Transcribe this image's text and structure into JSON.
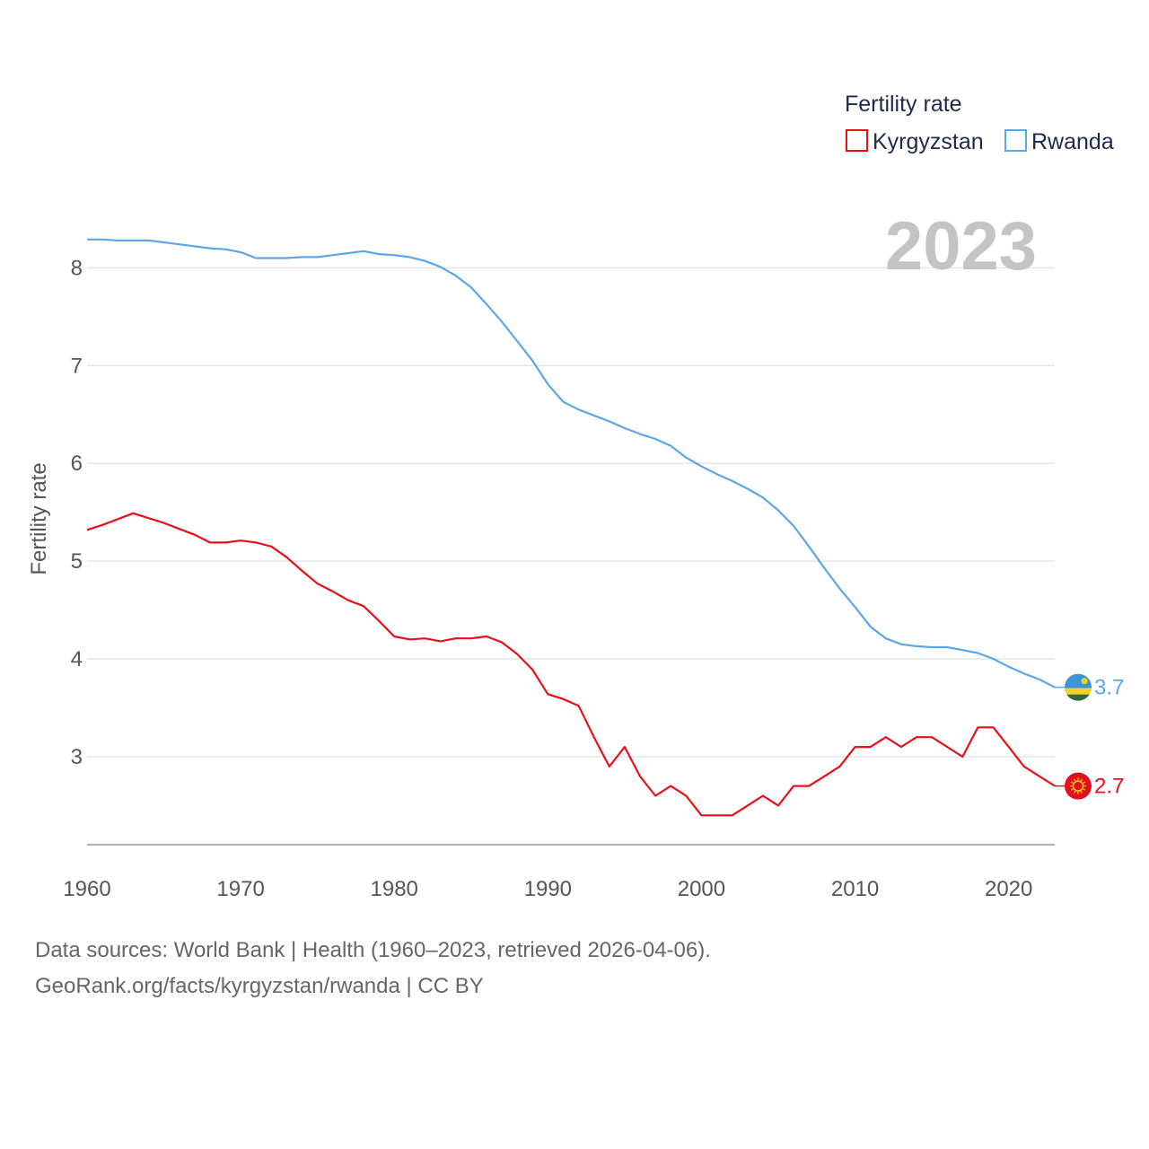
{
  "chart_data": {
    "type": "line",
    "title": "",
    "year_label": "2023",
    "xlabel": "",
    "ylabel": "Fertility rate",
    "xlim": [
      1960,
      2023
    ],
    "ylim": [
      2.1,
      8.6
    ],
    "xticks": [
      1960,
      1970,
      1980,
      1990,
      2000,
      2010,
      2020
    ],
    "yticks": [
      3,
      4,
      5,
      6,
      7,
      8
    ],
    "grid": true,
    "legend": {
      "title": "Fertility rate",
      "position": "top-right"
    },
    "x": [
      1960,
      1961,
      1962,
      1963,
      1964,
      1965,
      1966,
      1967,
      1968,
      1969,
      1970,
      1971,
      1972,
      1973,
      1974,
      1975,
      1976,
      1977,
      1978,
      1979,
      1980,
      1981,
      1982,
      1983,
      1984,
      1985,
      1986,
      1987,
      1988,
      1989,
      1990,
      1991,
      1992,
      1993,
      1994,
      1995,
      1996,
      1997,
      1998,
      1999,
      2000,
      2001,
      2002,
      2003,
      2004,
      2005,
      2006,
      2007,
      2008,
      2009,
      2010,
      2011,
      2012,
      2013,
      2014,
      2015,
      2016,
      2017,
      2018,
      2019,
      2020,
      2021,
      2022,
      2023
    ],
    "series": [
      {
        "name": "Kyrgyzstan",
        "color": "#e8101a",
        "end_label": "2.7",
        "flag": "kyrgyzstan-flag",
        "values": [
          5.32,
          5.37,
          5.43,
          5.49,
          5.44,
          5.39,
          5.33,
          5.27,
          5.19,
          5.19,
          5.21,
          5.19,
          5.15,
          5.04,
          4.9,
          4.77,
          4.69,
          4.6,
          4.54,
          4.39,
          4.23,
          4.2,
          4.21,
          4.18,
          4.21,
          4.21,
          4.23,
          4.17,
          4.05,
          3.89,
          3.64,
          3.59,
          3.52,
          3.2,
          2.9,
          3.1,
          2.8,
          2.6,
          2.7,
          2.6,
          2.4,
          2.4,
          2.4,
          2.5,
          2.6,
          2.5,
          2.7,
          2.7,
          2.8,
          2.9,
          3.1,
          3.1,
          3.2,
          3.1,
          3.2,
          3.2,
          3.1,
          3.0,
          3.3,
          3.3,
          3.1,
          2.9,
          2.8,
          2.7
        ]
      },
      {
        "name": "Rwanda",
        "color": "#5ba7e8",
        "end_label": "3.7",
        "flag": "rwanda-flag",
        "values": [
          8.29,
          8.29,
          8.28,
          8.28,
          8.28,
          8.26,
          8.24,
          8.22,
          8.2,
          8.19,
          8.16,
          8.1,
          8.1,
          8.1,
          8.11,
          8.11,
          8.13,
          8.15,
          8.17,
          8.14,
          8.13,
          8.11,
          8.07,
          8.01,
          7.92,
          7.8,
          7.63,
          7.45,
          7.25,
          7.05,
          6.81,
          6.63,
          6.55,
          6.49,
          6.43,
          6.36,
          6.3,
          6.25,
          6.18,
          6.06,
          5.97,
          5.89,
          5.82,
          5.74,
          5.65,
          5.52,
          5.36,
          5.15,
          4.93,
          4.72,
          4.53,
          4.33,
          4.21,
          4.15,
          4.13,
          4.12,
          4.12,
          4.09,
          4.06,
          4.0,
          3.92,
          3.85,
          3.79,
          3.71
        ]
      }
    ]
  },
  "footer": {
    "line1": "Data sources: World Bank | Health (1960–2023, retrieved 2026-04-06).",
    "line2": "GeoRank.org/facts/kyrgyzstan/rwanda | CC BY"
  }
}
